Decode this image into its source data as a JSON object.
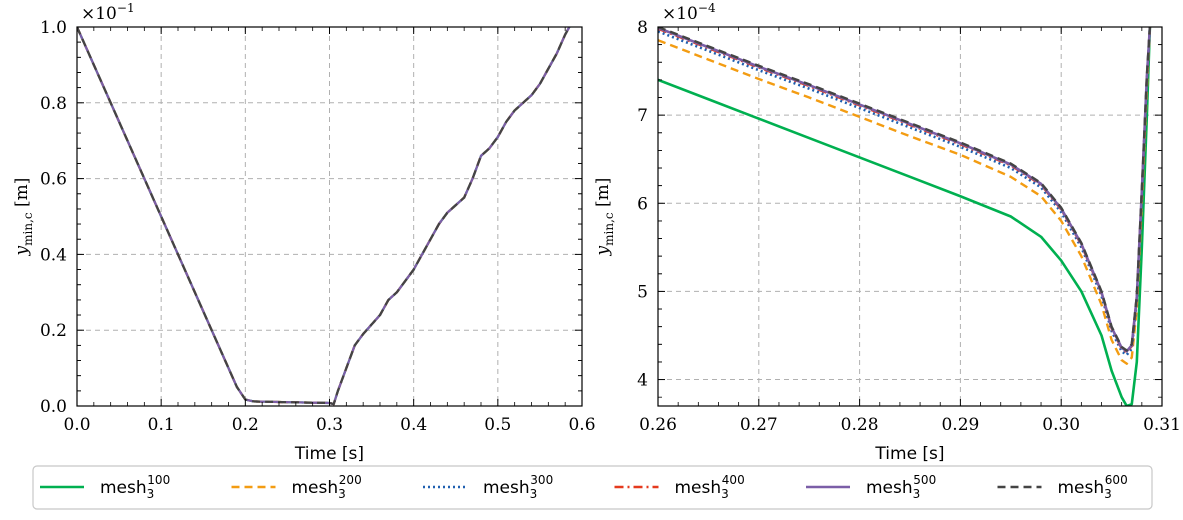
{
  "chart_data": [
    {
      "type": "line",
      "title": "",
      "xlabel": "Time [s]",
      "ylabel": "y_{min,c} [m]",
      "ylabel_main": "y",
      "ylabel_sub": "min,c",
      "ylabel_unit": "[m]",
      "xlim": [
        0.0,
        0.6
      ],
      "ylim": [
        0.0,
        1.0
      ],
      "sci_base": "×10",
      "sci_exp": "−1",
      "xticks": [
        0.0,
        0.1,
        0.2,
        0.3,
        0.4,
        0.5,
        0.6
      ],
      "xtick_labels": [
        "0.0",
        "0.1",
        "0.2",
        "0.3",
        "0.4",
        "0.5",
        "0.6"
      ],
      "yticks": [
        0.0,
        0.2,
        0.4,
        0.6,
        0.8,
        1.0
      ],
      "ytick_labels": [
        "0.0",
        "0.2",
        "0.4",
        "0.6",
        "0.8",
        "1.0"
      ],
      "grid": true,
      "x": [
        0.0,
        0.05,
        0.1,
        0.15,
        0.19,
        0.2,
        0.21,
        0.25,
        0.3,
        0.305,
        0.31,
        0.32,
        0.33,
        0.34,
        0.36,
        0.37,
        0.38,
        0.39,
        0.4,
        0.41,
        0.42,
        0.43,
        0.44,
        0.45,
        0.46,
        0.47,
        0.48,
        0.49,
        0.5,
        0.51,
        0.52,
        0.53,
        0.54,
        0.55,
        0.56,
        0.57,
        0.58,
        0.585
      ],
      "series": [
        {
          "name": "mesh3_100",
          "values": [
            1.0,
            0.75,
            0.5,
            0.25,
            0.05,
            0.017,
            0.012,
            0.01,
            0.008,
            0.005,
            0.04,
            0.1,
            0.16,
            0.19,
            0.24,
            0.28,
            0.3,
            0.33,
            0.36,
            0.4,
            0.44,
            0.48,
            0.51,
            0.53,
            0.55,
            0.6,
            0.66,
            0.68,
            0.71,
            0.75,
            0.78,
            0.8,
            0.82,
            0.85,
            0.89,
            0.93,
            0.98,
            1.0
          ]
        },
        {
          "name": "mesh3_200",
          "values": [
            1.0,
            0.75,
            0.5,
            0.25,
            0.05,
            0.017,
            0.012,
            0.01,
            0.008,
            0.005,
            0.04,
            0.1,
            0.16,
            0.19,
            0.24,
            0.28,
            0.3,
            0.33,
            0.36,
            0.4,
            0.44,
            0.48,
            0.51,
            0.53,
            0.55,
            0.6,
            0.66,
            0.68,
            0.71,
            0.75,
            0.78,
            0.8,
            0.82,
            0.85,
            0.89,
            0.93,
            0.98,
            1.0
          ]
        },
        {
          "name": "mesh3_300",
          "values": [
            1.0,
            0.75,
            0.5,
            0.25,
            0.05,
            0.017,
            0.012,
            0.01,
            0.008,
            0.005,
            0.04,
            0.1,
            0.16,
            0.19,
            0.24,
            0.28,
            0.3,
            0.33,
            0.36,
            0.4,
            0.44,
            0.48,
            0.51,
            0.53,
            0.55,
            0.6,
            0.66,
            0.68,
            0.71,
            0.75,
            0.78,
            0.8,
            0.82,
            0.85,
            0.89,
            0.93,
            0.98,
            1.0
          ]
        },
        {
          "name": "mesh3_400",
          "values": [
            1.0,
            0.75,
            0.5,
            0.25,
            0.05,
            0.017,
            0.012,
            0.01,
            0.008,
            0.005,
            0.04,
            0.1,
            0.16,
            0.19,
            0.24,
            0.28,
            0.3,
            0.33,
            0.36,
            0.4,
            0.44,
            0.48,
            0.51,
            0.53,
            0.55,
            0.6,
            0.66,
            0.68,
            0.71,
            0.75,
            0.78,
            0.8,
            0.82,
            0.85,
            0.89,
            0.93,
            0.98,
            1.0
          ]
        },
        {
          "name": "mesh3_500",
          "values": [
            1.0,
            0.75,
            0.5,
            0.25,
            0.05,
            0.017,
            0.012,
            0.01,
            0.008,
            0.005,
            0.04,
            0.1,
            0.16,
            0.19,
            0.24,
            0.28,
            0.3,
            0.33,
            0.36,
            0.4,
            0.44,
            0.48,
            0.51,
            0.53,
            0.55,
            0.6,
            0.66,
            0.68,
            0.71,
            0.75,
            0.78,
            0.8,
            0.82,
            0.85,
            0.89,
            0.93,
            0.98,
            1.0
          ]
        },
        {
          "name": "mesh3_600",
          "values": [
            1.0,
            0.75,
            0.5,
            0.25,
            0.05,
            0.017,
            0.012,
            0.01,
            0.008,
            0.005,
            0.04,
            0.1,
            0.16,
            0.19,
            0.24,
            0.28,
            0.3,
            0.33,
            0.36,
            0.4,
            0.44,
            0.48,
            0.51,
            0.53,
            0.55,
            0.6,
            0.66,
            0.68,
            0.71,
            0.75,
            0.78,
            0.8,
            0.82,
            0.85,
            0.89,
            0.93,
            0.98,
            1.0
          ]
        }
      ]
    },
    {
      "type": "line",
      "title": "",
      "xlabel": "Time [s]",
      "ylabel": "y_{min,c} [m]",
      "ylabel_main": "y",
      "ylabel_sub": "min,c",
      "ylabel_unit": "[m]",
      "xlim": [
        0.26,
        0.31
      ],
      "ylim": [
        3.7,
        8.0
      ],
      "sci_base": "×10",
      "sci_exp": "−4",
      "xticks": [
        0.26,
        0.27,
        0.28,
        0.29,
        0.3,
        0.31
      ],
      "xtick_labels": [
        "0.26",
        "0.27",
        "0.28",
        "0.29",
        "0.30",
        "0.31"
      ],
      "yticks": [
        4,
        5,
        6,
        7,
        8
      ],
      "ytick_labels": [
        "4",
        "5",
        "6",
        "7",
        "8"
      ],
      "grid": true,
      "series": [
        {
          "name": "mesh3_100",
          "x": [
            0.26,
            0.265,
            0.27,
            0.275,
            0.28,
            0.285,
            0.29,
            0.295,
            0.298,
            0.3,
            0.302,
            0.304,
            0.305,
            0.306,
            0.3065,
            0.307,
            0.3075,
            0.308,
            0.3085,
            0.3088
          ],
          "values": [
            7.4,
            7.18,
            6.96,
            6.74,
            6.52,
            6.3,
            6.08,
            5.85,
            5.62,
            5.35,
            5.0,
            4.5,
            4.1,
            3.8,
            3.7,
            3.72,
            4.2,
            5.5,
            7.0,
            8.0
          ]
        },
        {
          "name": "mesh3_200",
          "x": [
            0.26,
            0.265,
            0.27,
            0.275,
            0.28,
            0.285,
            0.29,
            0.295,
            0.298,
            0.3,
            0.302,
            0.304,
            0.305,
            0.306,
            0.3065,
            0.307,
            0.3075,
            0.308,
            0.3085,
            0.3088
          ],
          "values": [
            7.85,
            7.63,
            7.41,
            7.2,
            6.98,
            6.76,
            6.55,
            6.3,
            6.08,
            5.8,
            5.4,
            4.85,
            4.45,
            4.22,
            4.18,
            4.25,
            4.8,
            6.0,
            7.3,
            8.0
          ]
        },
        {
          "name": "mesh3_300",
          "x": [
            0.26,
            0.265,
            0.27,
            0.275,
            0.28,
            0.285,
            0.29,
            0.295,
            0.298,
            0.3,
            0.302,
            0.304,
            0.305,
            0.306,
            0.3065,
            0.307,
            0.3075,
            0.308,
            0.3085,
            0.3088
          ],
          "values": [
            7.95,
            7.73,
            7.51,
            7.3,
            7.08,
            6.86,
            6.64,
            6.4,
            6.18,
            5.9,
            5.5,
            4.95,
            4.55,
            4.32,
            4.28,
            4.35,
            4.9,
            6.1,
            7.4,
            8.0
          ]
        },
        {
          "name": "mesh3_400",
          "x": [
            0.26,
            0.265,
            0.27,
            0.275,
            0.28,
            0.285,
            0.29,
            0.295,
            0.298,
            0.3,
            0.302,
            0.304,
            0.305,
            0.306,
            0.3065,
            0.307,
            0.3075,
            0.308,
            0.3085,
            0.3088
          ],
          "values": [
            7.98,
            7.76,
            7.54,
            7.33,
            7.11,
            6.89,
            6.67,
            6.43,
            6.21,
            5.93,
            5.53,
            4.98,
            4.58,
            4.35,
            4.31,
            4.38,
            4.93,
            6.13,
            7.43,
            8.0
          ]
        },
        {
          "name": "mesh3_500",
          "x": [
            0.26,
            0.265,
            0.27,
            0.275,
            0.28,
            0.285,
            0.29,
            0.295,
            0.298,
            0.3,
            0.302,
            0.304,
            0.305,
            0.306,
            0.3065,
            0.307,
            0.3075,
            0.308,
            0.3085,
            0.3088
          ],
          "values": [
            7.99,
            7.77,
            7.55,
            7.34,
            7.12,
            6.9,
            6.68,
            6.44,
            6.22,
            5.94,
            5.54,
            4.99,
            4.59,
            4.36,
            4.32,
            4.39,
            4.94,
            6.14,
            7.44,
            8.0
          ]
        },
        {
          "name": "mesh3_600",
          "x": [
            0.26,
            0.265,
            0.27,
            0.275,
            0.28,
            0.285,
            0.29,
            0.295,
            0.298,
            0.3,
            0.302,
            0.304,
            0.305,
            0.306,
            0.3065,
            0.307,
            0.3075,
            0.308,
            0.3085,
            0.3088
          ],
          "values": [
            8.0,
            7.78,
            7.56,
            7.35,
            7.13,
            6.91,
            6.69,
            6.45,
            6.23,
            5.95,
            5.55,
            5.0,
            4.6,
            4.37,
            4.33,
            4.4,
            4.95,
            6.15,
            7.45,
            8.0
          ]
        }
      ]
    }
  ],
  "legend": {
    "placement": "bottom",
    "entries": [
      {
        "base": "mesh",
        "sub": "3",
        "sup": "100",
        "color": "#00b050",
        "dash": "solid"
      },
      {
        "base": "mesh",
        "sub": "3",
        "sup": "200",
        "color": "#f39c12",
        "dash": "dashed"
      },
      {
        "base": "mesh",
        "sub": "3",
        "sup": "300",
        "color": "#1f5fb0",
        "dash": "dotted"
      },
      {
        "base": "mesh",
        "sub": "3",
        "sup": "400",
        "color": "#e53a1e",
        "dash": "dashdot"
      },
      {
        "base": "mesh",
        "sub": "3",
        "sup": "500",
        "color": "#7b5ea7",
        "dash": "solid"
      },
      {
        "base": "mesh",
        "sub": "3",
        "sup": "600",
        "color": "#444444",
        "dash": "dashed"
      }
    ]
  }
}
